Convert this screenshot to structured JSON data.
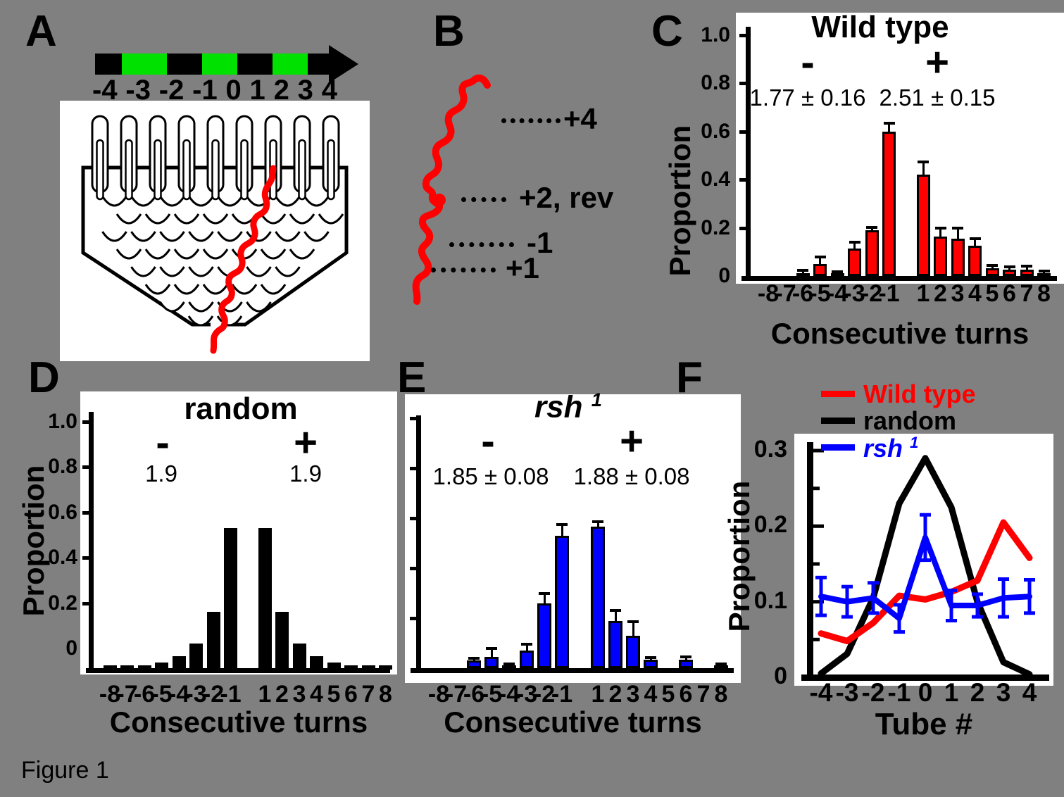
{
  "figure_label": "Figure 1",
  "colors": {
    "red": "#FF0000",
    "green": "#00E100",
    "blue": "#0000FF",
    "black": "#000000",
    "background": "#808080"
  },
  "panel_a": {
    "label": "A",
    "arrow_numbers": [
      "-4",
      "-3",
      "-2",
      "-1",
      "0",
      "1",
      "2",
      "3",
      "4"
    ],
    "arrow_segments": [
      "black",
      "green",
      "black",
      "green",
      "black",
      "green",
      "black"
    ]
  },
  "panel_b": {
    "label": "B",
    "annotations": [
      {
        "label": "+4"
      },
      {
        "label": "+2, rev"
      },
      {
        "label": "-1"
      },
      {
        "label": "+1"
      }
    ]
  },
  "panel_c": {
    "label": "C"
  },
  "panel_d": {
    "label": "D"
  },
  "panel_e": {
    "label": "E"
  },
  "panel_f": {
    "label": "F",
    "legend": [
      {
        "text": "Wild type",
        "color": "#FF0000"
      },
      {
        "text": "random",
        "color": "#000000"
      },
      {
        "text": "rsh",
        "sup": "1",
        "color": "#0000FF"
      }
    ]
  },
  "chart_data": [
    {
      "id": "wild_type_histogram",
      "panel": "C",
      "type": "bar",
      "title": "Wild type",
      "bar_color": "#FF0000",
      "categories": [
        "-8",
        "-7",
        "-6",
        "-5",
        "-4",
        "-3",
        "-2",
        "-1",
        "1",
        "2",
        "3",
        "4",
        "5",
        "6",
        "7",
        "8"
      ],
      "values": [
        0,
        0,
        0.012,
        0.05,
        0.012,
        0.115,
        0.19,
        0.6,
        0.42,
        0.165,
        0.155,
        0.125,
        0.033,
        0.025,
        0.027,
        0.012
      ],
      "errors": [
        0,
        0,
        0.012,
        0.028,
        0.006,
        0.025,
        0.012,
        0.035,
        0.055,
        0.035,
        0.045,
        0.03,
        0.012,
        0.012,
        0.014,
        0.008
      ],
      "xlabel": "Consecutive turns",
      "ylabel": "Proportion",
      "ylim": [
        0,
        1.0
      ],
      "ytick_labels": [
        "1.0",
        "0.8",
        "0.6",
        "0.4",
        "0.2",
        "0"
      ],
      "minus_label": "-",
      "plus_label": "+",
      "minus_value": "1.77 ± 0.16",
      "plus_value": "2.51 ± 0.15"
    },
    {
      "id": "random_histogram",
      "panel": "D",
      "type": "bar",
      "title": "random",
      "bar_color": "#000000",
      "categories": [
        "-8",
        "-7",
        "-6",
        "-5",
        "-4",
        "-3",
        "-2",
        "-1",
        "1",
        "2",
        "3",
        "4",
        "5",
        "6",
        "7",
        "8"
      ],
      "values": [
        0.003,
        0.005,
        0.012,
        0.022,
        0.05,
        0.1,
        0.23,
        0.57,
        0.57,
        0.23,
        0.1,
        0.05,
        0.022,
        0.012,
        0.005,
        0.003
      ],
      "xlabel": "Consecutive turns",
      "ylabel": "Proportion",
      "ylim": [
        0,
        1.0
      ],
      "ytick_labels": [
        "1.0",
        "0.8",
        "0.6",
        "0.4",
        "0.2",
        "0"
      ],
      "minus_label": "-",
      "plus_label": "+",
      "minus_value": "1.9",
      "plus_value": "1.9"
    },
    {
      "id": "rsh1_histogram",
      "panel": "E",
      "type": "bar",
      "title": "rsh 1",
      "title_base": "rsh",
      "title_sup": "1",
      "bar_color": "#0000FF",
      "categories": [
        "-8",
        "-7",
        "-6",
        "-5",
        "-4",
        "-3",
        "-2",
        "-1",
        "1",
        "2",
        "3",
        "4",
        "5",
        "6",
        "7",
        "8"
      ],
      "values": [
        0,
        0,
        0.03,
        0.045,
        0.008,
        0.07,
        0.26,
        0.53,
        0.565,
        0.19,
        0.13,
        0.033,
        0,
        0.033,
        0,
        0.01
      ],
      "errors": [
        0,
        0,
        0.01,
        0.035,
        0.005,
        0.027,
        0.04,
        0.045,
        0.02,
        0.04,
        0.055,
        0.01,
        0,
        0.012,
        0,
        0.005
      ],
      "xlabel": "Consecutive turns",
      "ylim": [
        0,
        1.0
      ],
      "ytick_labels": [],
      "minus_label": "-",
      "plus_label": "+",
      "minus_value": "1.85 ± 0.08",
      "plus_value": "1.88 ± 0.08"
    },
    {
      "id": "tube_distribution",
      "panel": "F",
      "type": "line",
      "x": [
        "-4",
        "-3",
        "-2",
        "-1",
        "0",
        "1",
        "2",
        "3",
        "4"
      ],
      "series": [
        {
          "name": "Wild type",
          "color": "#FF0000",
          "values": [
            0.058,
            0.048,
            0.072,
            0.108,
            0.103,
            0.113,
            0.128,
            0.205,
            0.158
          ]
        },
        {
          "name": "random",
          "color": "#000000",
          "values": [
            0.005,
            0.031,
            0.105,
            0.23,
            0.29,
            0.225,
            0.1,
            0.02,
            0.004
          ]
        },
        {
          "name": "rsh 1",
          "color": "#0000FF",
          "values": [
            0.107,
            0.1,
            0.105,
            0.078,
            0.185,
            0.095,
            0.095,
            0.105,
            0.107
          ],
          "errors": [
            0.025,
            0.02,
            0.02,
            0.018,
            0.03,
            0.02,
            0.015,
            0.025,
            0.022
          ]
        }
      ],
      "xlabel": "Tube #",
      "ylabel": "Proportion",
      "ylim": [
        0,
        0.3
      ],
      "ytick_labels": [
        "0.3",
        "0.2",
        "0.1",
        "0"
      ],
      "legend_position": "top-left"
    }
  ]
}
